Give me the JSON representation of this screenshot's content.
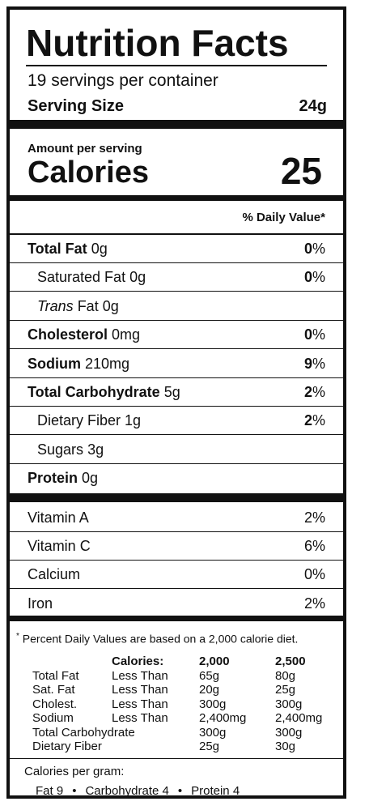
{
  "label": {
    "title": "Nutrition Facts",
    "servings_text": "19 servings per container",
    "serving_size_label": "Serving Size",
    "serving_size_value": "24g",
    "amount_per_serving": "Amount per serving",
    "calories_label": "Calories",
    "calories_value": "25",
    "daily_value_header": "% Daily Value*"
  },
  "nutrients": [
    {
      "name": "Total Fat",
      "amount": "0g",
      "dv": "0",
      "bold": true
    },
    {
      "name": "Saturated Fat",
      "amount": "0g",
      "dv": "0",
      "indent": true
    },
    {
      "name": "Trans",
      "suffix": " Fat 0g",
      "dv": "",
      "indent": true,
      "italic": true
    },
    {
      "name": "Cholesterol",
      "amount": "0mg",
      "dv": "0",
      "bold": true
    },
    {
      "name": "Sodium",
      "amount": "210mg",
      "dv": "9",
      "bold": true
    },
    {
      "name": "Total Carbohydrate",
      "amount": "5g",
      "dv": "2",
      "bold": true
    },
    {
      "name": "Dietary Fiber",
      "amount": "1g",
      "dv": "2",
      "indent": true
    },
    {
      "name": "Sugars",
      "amount": "3g",
      "dv": "",
      "indent": true
    },
    {
      "name": "Protein",
      "amount": "0g",
      "dv": "",
      "bold": true
    }
  ],
  "vitamins": [
    {
      "name": "Vitamin A",
      "dv": "2%"
    },
    {
      "name": "Vitamin C",
      "dv": "6%"
    },
    {
      "name": "Calcium",
      "dv": "0%"
    },
    {
      "name": "Iron",
      "dv": "2%"
    }
  ],
  "footnote": {
    "asterisk": "*",
    "text": "Percent Daily Values are based on a 2,000 calorie diet.",
    "table_header": [
      "Calories:",
      "2,000",
      "2,500"
    ],
    "table_rows": [
      [
        "Total Fat",
        "Less Than",
        "65g",
        "80g"
      ],
      [
        "Sat. Fat",
        "Less Than",
        "20g",
        "25g"
      ],
      [
        "Cholest.",
        "Less Than",
        "300g",
        "300g"
      ],
      [
        "Sodium",
        "Less Than",
        "2,400mg",
        "2,400mg"
      ],
      [
        "Total Carbohydrate",
        "",
        "300g",
        "300g"
      ],
      [
        "Dietary Fiber",
        "",
        "25g",
        "30g"
      ]
    ]
  },
  "calories_per_gram": {
    "title": "Calories per gram:",
    "fat": "Fat 9",
    "carbohydrate": "Carbohydrate 4",
    "protein": "Protein 4",
    "separator": "•"
  }
}
